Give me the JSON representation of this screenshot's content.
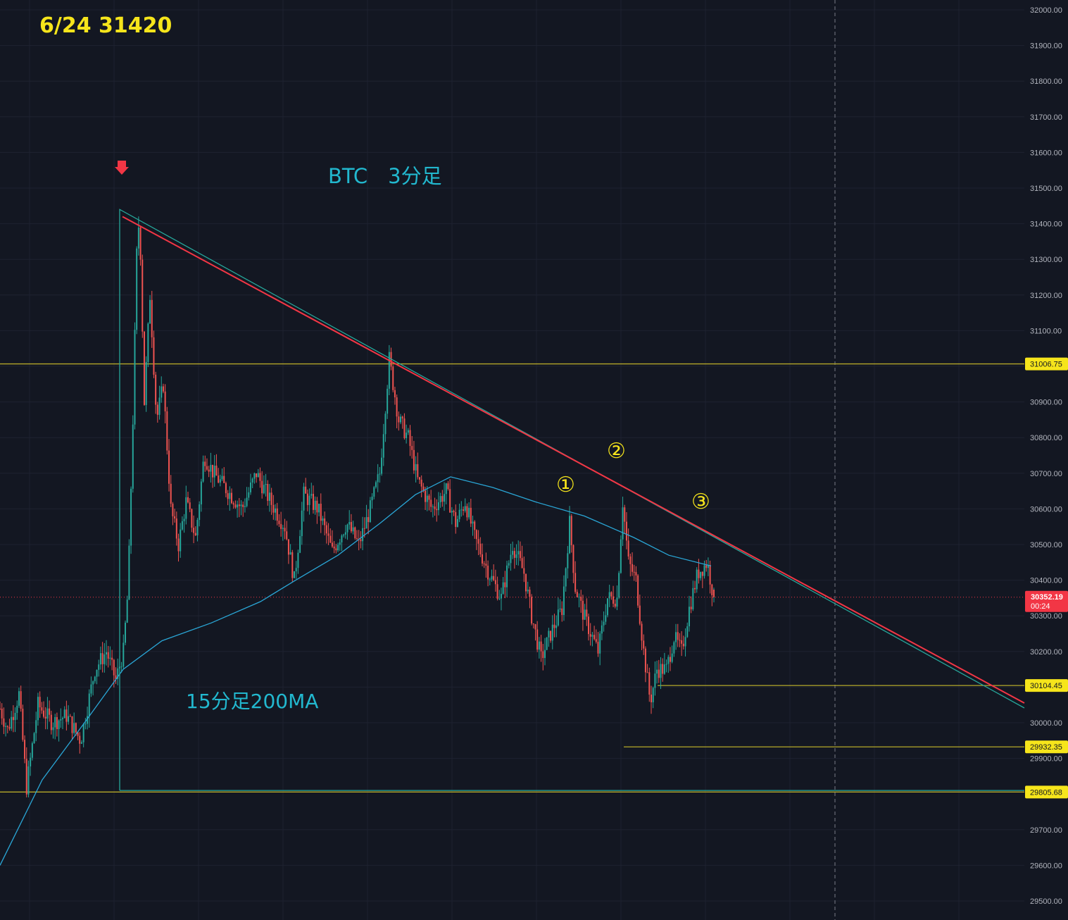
{
  "colors": {
    "background": "#131722",
    "grid": "#1e2230",
    "axis_text": "#b2b5be",
    "candle_up": "#26a69a",
    "candle_down": "#ef5350",
    "level_line": "#b5a82a",
    "level_tag_bg": "#f6e51b",
    "level_tag_text": "#131722",
    "current_tag_bg": "#f23645",
    "current_tag_text": "#ffffff",
    "trend_red": "#f23645",
    "triangle_teal": "#26a69a",
    "ma_line": "#2aa6d6",
    "annotation_yellow": "#f6e51b",
    "annotation_cyan": "#22b8cf",
    "arrow_red": "#f23645"
  },
  "annotations": {
    "header": "6/24 31420",
    "title": "BTC　3分足",
    "ma_label": "15分足200MA",
    "mark1": "①",
    "mark2": "②",
    "mark3": "③"
  },
  "current_price": {
    "value": "30352.19",
    "countdown": "00:24"
  },
  "chart_data": {
    "type": "candlestick",
    "ylim": [
      29450,
      32050
    ],
    "y_ticks": [
      32000,
      31900,
      31800,
      31700,
      31600,
      31500,
      31400,
      31300,
      31200,
      31100,
      31000,
      30900,
      30800,
      30700,
      30600,
      30500,
      30400,
      30300,
      30200,
      30100,
      30000,
      29900,
      29700,
      29600,
      29500
    ],
    "y_tick_labels": [
      "32000.00",
      "31900.00",
      "31800.00",
      "31700.00",
      "31600.00",
      "31500.00",
      "31400.00",
      "31300.00",
      "31200.00",
      "31100.00",
      "31000.00",
      "30900.00",
      "30800.00",
      "30700.00",
      "30600.00",
      "30500.00",
      "30400.00",
      "30300.00",
      "30200.00",
      "30100.00",
      "30000.00",
      "29900.00",
      "29700.00",
      "29600.00",
      "29500.00"
    ],
    "levels": [
      {
        "label": "31006.75",
        "price": 31006.75
      },
      {
        "label": "30104.45",
        "price": 30104.45
      },
      {
        "label": "29932.35",
        "price": 29932.35
      },
      {
        "label": "29805.68",
        "price": 29805.68
      }
    ],
    "current_price": 30352.19,
    "bar_count": 340,
    "price_path": [
      [
        0,
        30040
      ],
      [
        8,
        29980
      ],
      [
        20,
        30080
      ],
      [
        28,
        29820
      ],
      [
        40,
        30050
      ],
      [
        55,
        30000
      ],
      [
        70,
        30020
      ],
      [
        85,
        29950
      ],
      [
        100,
        30150
      ],
      [
        112,
        30200
      ],
      [
        122,
        30120
      ],
      [
        130,
        30200
      ],
      [
        135,
        30380
      ],
      [
        140,
        30850
      ],
      [
        145,
        31430
      ],
      [
        148,
        31320
      ],
      [
        152,
        30900
      ],
      [
        158,
        31200
      ],
      [
        165,
        30850
      ],
      [
        172,
        30950
      ],
      [
        180,
        30600
      ],
      [
        188,
        30500
      ],
      [
        196,
        30620
      ],
      [
        206,
        30520
      ],
      [
        215,
        30750
      ],
      [
        225,
        30700
      ],
      [
        240,
        30650
      ],
      [
        255,
        30600
      ],
      [
        270,
        30700
      ],
      [
        285,
        30620
      ],
      [
        300,
        30550
      ],
      [
        310,
        30400
      ],
      [
        320,
        30640
      ],
      [
        335,
        30600
      ],
      [
        350,
        30480
      ],
      [
        365,
        30560
      ],
      [
        378,
        30500
      ],
      [
        390,
        30600
      ],
      [
        400,
        30700
      ],
      [
        410,
        31020
      ],
      [
        420,
        30850
      ],
      [
        430,
        30800
      ],
      [
        440,
        30680
      ],
      [
        455,
        30600
      ],
      [
        470,
        30650
      ],
      [
        480,
        30560
      ],
      [
        490,
        30620
      ],
      [
        500,
        30520
      ],
      [
        515,
        30420
      ],
      [
        528,
        30350
      ],
      [
        540,
        30500
      ],
      [
        552,
        30420
      ],
      [
        560,
        30300
      ],
      [
        570,
        30180
      ],
      [
        580,
        30250
      ],
      [
        592,
        30320
      ],
      [
        600,
        30560
      ],
      [
        606,
        30380
      ],
      [
        615,
        30300
      ],
      [
        630,
        30200
      ],
      [
        640,
        30350
      ],
      [
        650,
        30350
      ],
      [
        656,
        30620
      ],
      [
        662,
        30450
      ],
      [
        670,
        30400
      ],
      [
        678,
        30200
      ],
      [
        685,
        30060
      ],
      [
        692,
        30150
      ],
      [
        702,
        30150
      ],
      [
        710,
        30240
      ],
      [
        718,
        30200
      ],
      [
        726,
        30320
      ],
      [
        735,
        30420
      ],
      [
        745,
        30450
      ],
      [
        752,
        30350
      ]
    ],
    "series": [
      {
        "name": "15分足200MA"
      }
    ]
  }
}
